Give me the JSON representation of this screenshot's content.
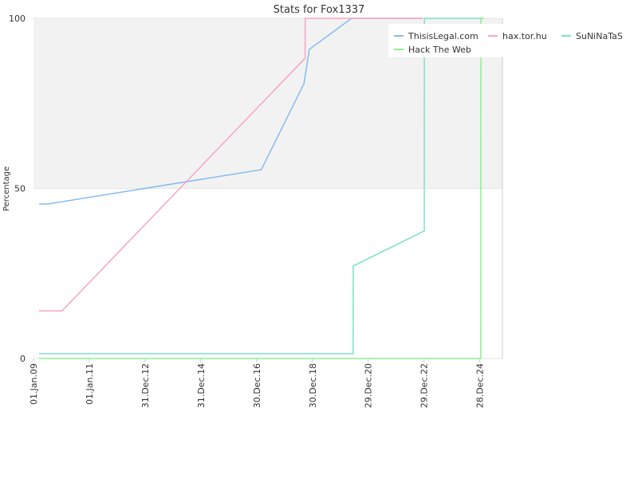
{
  "chart_data": {
    "type": "line",
    "title": "Stats for Fox1337",
    "y_label": "Percentage",
    "xlim": [
      "2009-01-01",
      "2025-10-20"
    ],
    "ylim": [
      0,
      100
    ],
    "yticks": [
      0,
      50,
      100
    ],
    "xticks": [
      {
        "value": "2009-01-01",
        "label": "01.Jan.09"
      },
      {
        "value": "2011-01-01",
        "label": "01.Jan.11"
      },
      {
        "value": "2012-12-31",
        "label": "31.Dec.12"
      },
      {
        "value": "2014-12-31",
        "label": "31.Dec.14"
      },
      {
        "value": "2016-12-30",
        "label": "30.Dec.16"
      },
      {
        "value": "2018-12-30",
        "label": "30.Dec.18"
      },
      {
        "value": "2020-12-29",
        "label": "29.Dec.20"
      },
      {
        "value": "2022-12-29",
        "label": "29.Dec.22"
      },
      {
        "value": "2024-12-28",
        "label": "28.Dec.24"
      }
    ],
    "grid": true,
    "band": [
      50,
      100
    ],
    "band_color": "#f2f2f2",
    "legend": "top-right",
    "series": [
      {
        "name": "ThisisLegal.com",
        "color": "#88bbee",
        "x": [
          "2009-03-15",
          "2009-07-05",
          "2017-03-01",
          "2018-09-10",
          "2018-11-20",
          "2020-05-25",
          "2022-12-10"
        ],
        "values": [
          45.4,
          45.4,
          55.5,
          80.8,
          90.9,
          100,
          100
        ]
      },
      {
        "name": "hax.tor.hu",
        "color": "#f4a6c8",
        "x": [
          "2009-03-15",
          "2010-01-10",
          "2018-09-25",
          "2018-09-26",
          "2022-12-10"
        ],
        "values": [
          14,
          14,
          88.3,
          100,
          100
        ]
      },
      {
        "name": "SuNiNaTaS",
        "color": "#7ee0c8",
        "x": [
          "2009-03-15",
          "2020-06-15",
          "2020-06-16",
          "2023-01-01",
          "2023-01-02",
          "2025-02-20"
        ],
        "values": [
          1.4,
          1.4,
          27.2,
          37.5,
          100,
          100
        ]
      },
      {
        "name": "Hack The Web",
        "color": "#90ee90",
        "x": [
          "2009-03-15",
          "2025-01-10",
          "2025-01-11",
          "2025-02-20"
        ],
        "values": [
          0,
          0,
          100,
          100
        ]
      }
    ]
  }
}
